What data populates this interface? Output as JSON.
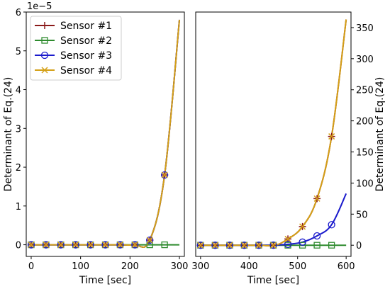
{
  "chart_data": [
    {
      "type": "line",
      "xlabel": "Time [sec]",
      "ylabel": "Determinant of Eq.(24)",
      "y_offset_label": "1e−5",
      "y_multiplier": 1e-05,
      "xlim": [
        -10,
        310
      ],
      "ylim": [
        -0.3,
        6.0
      ],
      "xticks": [
        0,
        100,
        200,
        300
      ],
      "yticks": [
        0,
        1,
        2,
        3,
        4,
        5,
        6
      ],
      "legend_position": "upper-left",
      "series": [
        {
          "name": "Sensor #1",
          "color": "#8b1a1a",
          "marker": "plus",
          "x": [
            0,
            30,
            60,
            90,
            120,
            150,
            180,
            210,
            240,
            270,
            300
          ],
          "y": [
            0,
            0,
            0,
            0,
            0,
            0,
            0,
            0,
            0.12,
            1.8,
            5.8
          ]
        },
        {
          "name": "Sensor #2",
          "color": "#2e8b2e",
          "marker": "square",
          "x": [
            0,
            30,
            60,
            90,
            120,
            150,
            180,
            210,
            240,
            270,
            300
          ],
          "y": [
            0,
            0,
            0,
            0,
            0,
            0,
            0,
            0,
            0,
            0,
            0
          ]
        },
        {
          "name": "Sensor #3",
          "color": "#1a1acc",
          "marker": "circle",
          "x": [
            0,
            30,
            60,
            90,
            120,
            150,
            180,
            210,
            240,
            270,
            300
          ],
          "y": [
            0,
            0,
            0,
            0,
            0,
            0,
            0,
            0,
            0.12,
            1.8,
            5.8
          ]
        },
        {
          "name": "Sensor #4",
          "color": "#d4a017",
          "marker": "x",
          "x": [
            0,
            30,
            60,
            90,
            120,
            150,
            180,
            210,
            240,
            270,
            300
          ],
          "y": [
            0,
            0,
            0,
            0,
            0,
            0,
            0,
            0,
            0.12,
            1.8,
            5.8
          ]
        }
      ]
    },
    {
      "type": "line",
      "xlabel": "Time [sec]",
      "ylabel": "Determinant of Eq.(24)",
      "xlim": [
        290,
        610
      ],
      "ylim": [
        -18,
        375
      ],
      "xticks": [
        300,
        400,
        500,
        600
      ],
      "yticks": [
        0,
        50,
        100,
        150,
        200,
        250,
        300,
        350
      ],
      "series": [
        {
          "name": "Sensor #1",
          "color": "#8b1a1a",
          "marker": "plus",
          "x": [
            300,
            330,
            360,
            390,
            420,
            450,
            480,
            510,
            540,
            570,
            600
          ],
          "y": [
            0,
            0,
            0,
            0,
            0,
            0,
            10,
            30,
            75,
            175,
            363
          ]
        },
        {
          "name": "Sensor #2",
          "color": "#2e8b2e",
          "marker": "square",
          "x": [
            300,
            330,
            360,
            390,
            420,
            450,
            480,
            510,
            540,
            570,
            600
          ],
          "y": [
            0,
            0,
            0,
            0,
            0,
            0,
            0,
            0,
            0,
            0,
            0
          ]
        },
        {
          "name": "Sensor #3",
          "color": "#1a1acc",
          "marker": "circle",
          "x": [
            300,
            330,
            360,
            390,
            420,
            450,
            480,
            510,
            540,
            570,
            600
          ],
          "y": [
            0,
            0,
            0,
            0,
            0,
            0.2,
            1.5,
            5,
            15,
            33,
            83
          ]
        },
        {
          "name": "Sensor #4",
          "color": "#d4a017",
          "marker": "x",
          "x": [
            300,
            330,
            360,
            390,
            420,
            450,
            480,
            510,
            540,
            570,
            600
          ],
          "y": [
            0,
            0,
            0,
            0,
            0,
            0,
            10,
            30,
            75,
            175,
            363
          ]
        }
      ]
    }
  ]
}
